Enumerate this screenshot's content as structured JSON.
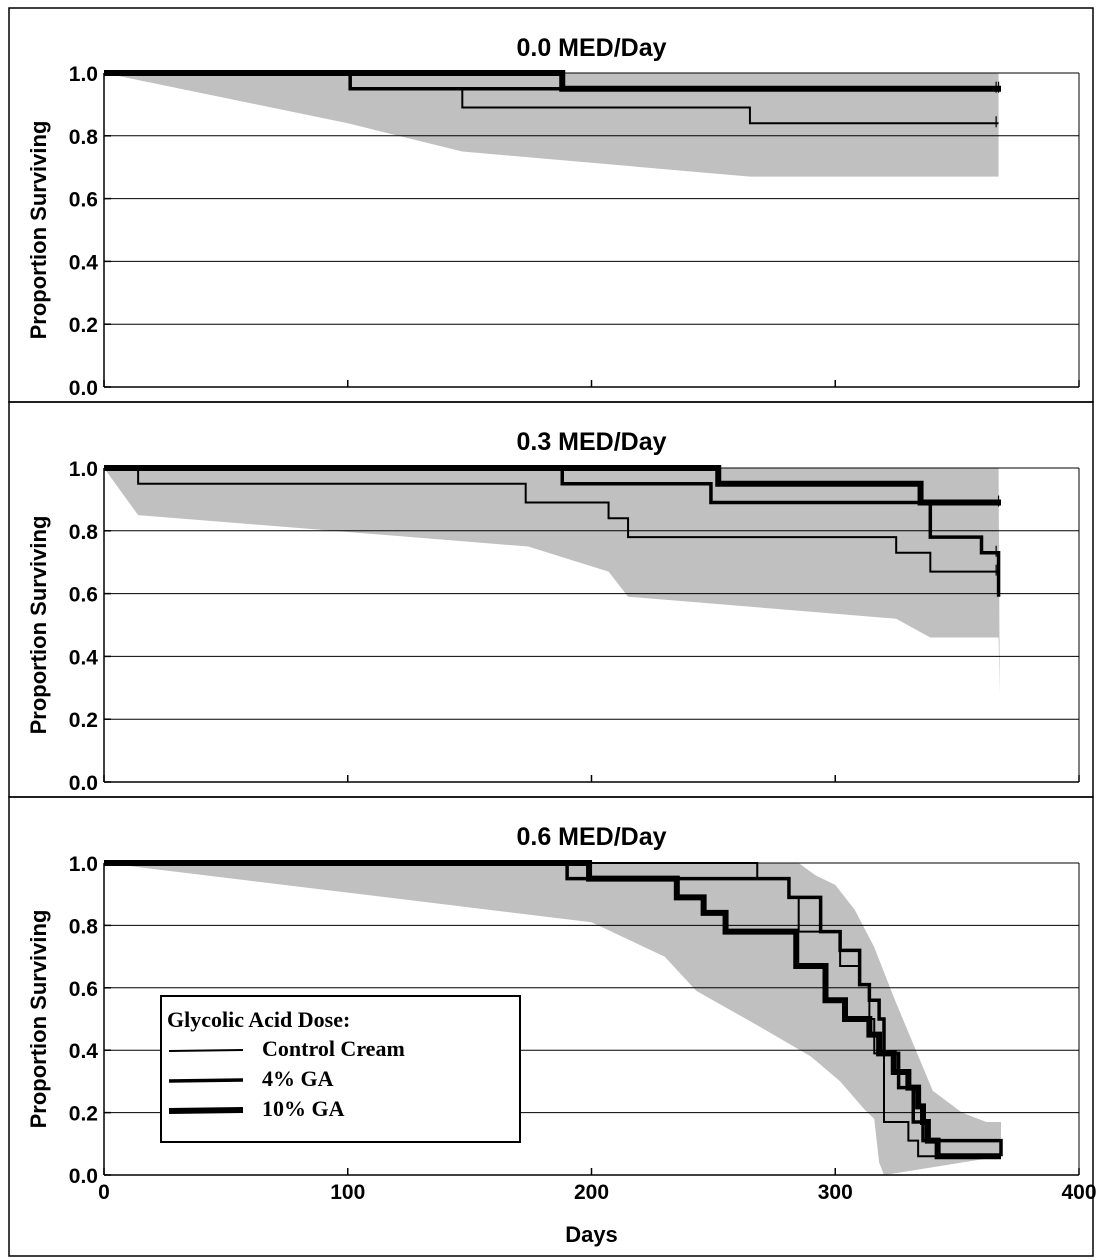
{
  "chart_data": {
    "type": "line",
    "subtype": "kaplan-meier step",
    "xlabel": "Days",
    "ylabel": "Proportion Surviving",
    "xlim": [
      0,
      400
    ],
    "ylim": [
      0,
      1
    ],
    "x_ticks": [
      0,
      100,
      200,
      300,
      400
    ],
    "x_tick_labels": [
      "0",
      "100",
      "200",
      "300",
      "400"
    ],
    "y_ticks": [
      0,
      0.2,
      0.4,
      0.6,
      0.8,
      1.0
    ],
    "y_tick_labels": [
      "0.0",
      "0.2",
      "0.4",
      "0.6",
      "0.8",
      "1.0"
    ],
    "grid": "horizontal",
    "band_color": "#c0c0c0",
    "line_color": "#000000",
    "legend": {
      "title": "Glycolic Acid Dose:",
      "placement": "inside-lower-left of 0.6 MED/Day panel",
      "entries": [
        {
          "label": "Control Cream",
          "series": "Control Cream"
        },
        {
          "label": "4% GA",
          "series": "4% GA"
        },
        {
          "label": "10% GA",
          "series": "10% GA"
        }
      ]
    },
    "panels": [
      {
        "title": "0.0 MED/Day",
        "band": {
          "upper": [
            [
              0,
              1.0
            ],
            [
              367,
              1.0
            ]
          ],
          "lower": [
            [
              0,
              1.0
            ],
            [
              100,
              0.84
            ],
            [
              147,
              0.75
            ],
            [
              265,
              0.67
            ],
            [
              367,
              0.67
            ]
          ]
        },
        "series": [
          {
            "name": "Control Cream",
            "steps": [
              [
                0,
                1.0
              ],
              [
                101,
                0.95
              ],
              [
                147,
                0.89
              ],
              [
                265,
                0.84
              ],
              [
                367,
                0.84
              ]
            ],
            "censor": [
              366
            ]
          },
          {
            "name": "4% GA",
            "steps": [
              [
                0,
                1.0
              ],
              [
                101,
                0.95
              ],
              [
                368,
                0.95
              ]
            ],
            "censor": [
              366
            ]
          },
          {
            "name": "10% GA",
            "steps": [
              [
                0,
                1.0
              ],
              [
                188,
                0.95
              ],
              [
                368,
                0.95
              ]
            ],
            "censor": [
              367
            ]
          }
        ]
      },
      {
        "title": "0.3 MED/Day",
        "band": {
          "upper": [
            [
              0,
              1.0
            ],
            [
              367,
              1.0
            ]
          ],
          "lower": [
            [
              0,
              1.0
            ],
            [
              14,
              0.85
            ],
            [
              174,
              0.75
            ],
            [
              207,
              0.67
            ],
            [
              215,
              0.59
            ],
            [
              325,
              0.52
            ],
            [
              339,
              0.46
            ],
            [
              367,
              0.46
            ],
            [
              367.5,
              0.28
            ]
          ]
        },
        "series": [
          {
            "name": "Control Cream",
            "steps": [
              [
                0,
                1.0
              ],
              [
                14,
                0.95
              ],
              [
                173,
                0.89
              ],
              [
                207,
                0.84
              ],
              [
                215,
                0.78
              ],
              [
                325,
                0.73
              ],
              [
                339,
                0.67
              ],
              [
                367,
                0.67
              ]
            ],
            "censor": [
              366
            ]
          },
          {
            "name": "4% GA",
            "steps": [
              [
                0,
                1.0
              ],
              [
                188,
                0.95
              ],
              [
                249,
                0.89
              ],
              [
                339,
                0.78
              ],
              [
                360,
                0.73
              ],
              [
                367,
                0.59
              ]
            ],
            "censor": [
              366
            ]
          },
          {
            "name": "10% GA",
            "steps": [
              [
                0,
                1.0
              ],
              [
                252,
                0.95
              ],
              [
                335,
                0.89
              ],
              [
                368,
                0.89
              ]
            ],
            "censor": [
              367
            ]
          }
        ]
      },
      {
        "title": "0.6 MED/Day",
        "band": {
          "upper": [
            [
              0,
              1.0
            ],
            [
              285,
              1.0
            ],
            [
              292,
              0.96
            ],
            [
              300,
              0.93
            ],
            [
              308,
              0.85
            ],
            [
              316,
              0.73
            ],
            [
              324,
              0.57
            ],
            [
              332,
              0.42
            ],
            [
              340,
              0.27
            ],
            [
              352,
              0.2
            ],
            [
              362,
              0.17
            ],
            [
              368,
              0.17
            ],
            [
              368,
              0.06
            ]
          ],
          "lower": [
            [
              0,
              1.0
            ],
            [
              200,
              0.81
            ],
            [
              230,
              0.7
            ],
            [
              243,
              0.59
            ],
            [
              268,
              0.48
            ],
            [
              290,
              0.38
            ],
            [
              302,
              0.3
            ],
            [
              312,
              0.21
            ],
            [
              316,
              0.18
            ],
            [
              318,
              0.04
            ],
            [
              320,
              0.0
            ]
          ]
        },
        "series": [
          {
            "name": "Control Cream",
            "steps": [
              [
                0,
                1.0
              ],
              [
                268,
                0.95
              ],
              [
                281,
                0.89
              ],
              [
                285,
                0.78
              ],
              [
                302,
                0.67
              ],
              [
                310,
                0.61
              ],
              [
                314,
                0.5
              ],
              [
                316,
                0.39
              ],
              [
                320,
                0.17
              ],
              [
                330,
                0.11
              ],
              [
                334,
                0.06
              ],
              [
                368,
                0.06
              ]
            ],
            "censor": []
          },
          {
            "name": "4% GA",
            "steps": [
              [
                0,
                1.0
              ],
              [
                190,
                0.95
              ],
              [
                281,
                0.89
              ],
              [
                294,
                0.78
              ],
              [
                302,
                0.72
              ],
              [
                310,
                0.61
              ],
              [
                314,
                0.56
              ],
              [
                318,
                0.5
              ],
              [
                320,
                0.39
              ],
              [
                326,
                0.28
              ],
              [
                332,
                0.17
              ],
              [
                336,
                0.11
              ],
              [
                368,
                0.06
              ]
            ],
            "censor": []
          },
          {
            "name": "10% GA",
            "steps": [
              [
                0,
                1.0
              ],
              [
                199,
                0.95
              ],
              [
                235,
                0.89
              ],
              [
                246,
                0.84
              ],
              [
                255,
                0.78
              ],
              [
                284,
                0.67
              ],
              [
                296,
                0.56
              ],
              [
                304,
                0.5
              ],
              [
                314,
                0.45
              ],
              [
                318,
                0.39
              ],
              [
                324,
                0.33
              ],
              [
                330,
                0.28
              ],
              [
                334,
                0.22
              ],
              [
                336,
                0.17
              ],
              [
                338,
                0.11
              ],
              [
                342,
                0.06
              ],
              [
                368,
                0.06
              ]
            ],
            "censor": []
          }
        ]
      }
    ]
  }
}
